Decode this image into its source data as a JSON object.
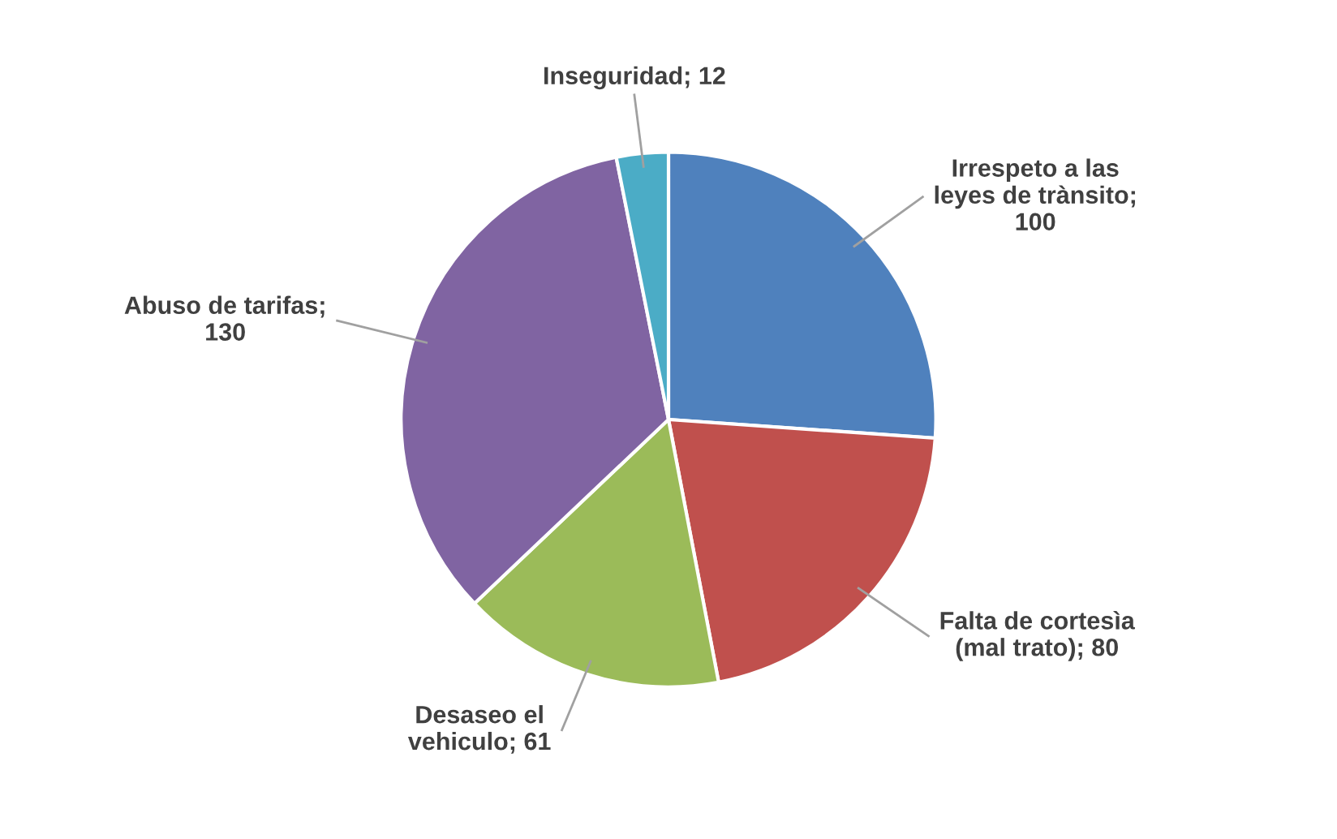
{
  "chart_data": {
    "type": "pie",
    "categories": [
      "Irrespeto a las leyes de trànsito",
      "Falta de cortesìa (mal trato)",
      "Desaseo el vehiculo",
      "Abuso de tarifas",
      "Inseguridad"
    ],
    "values": [
      100,
      80,
      61,
      130,
      12
    ],
    "value_labels": [
      ";\n100",
      "; 80",
      "; 61",
      ";\n130",
      "; 12"
    ],
    "colors": [
      "#4f81bd",
      "#c0504d",
      "#9bbb59",
      "#8064a2",
      "#4bacc6"
    ],
    "legend": false
  }
}
